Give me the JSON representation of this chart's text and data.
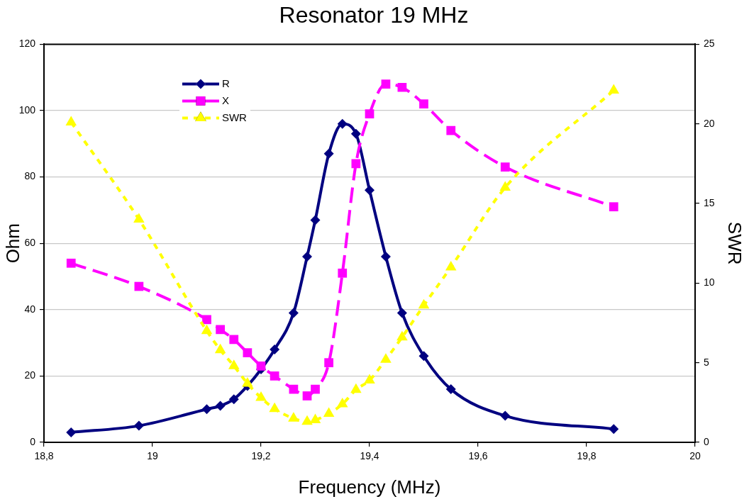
{
  "chart_data": {
    "type": "line",
    "title": "Resonator 19 MHz",
    "xlabel": "Frequency (MHz)",
    "ylabel": "Ohm",
    "y2label": "SWR",
    "x": [
      18.85,
      18.975,
      19.1,
      19.125,
      19.15,
      19.175,
      19.2,
      19.225,
      19.26,
      19.285,
      19.3,
      19.325,
      19.35,
      19.375,
      19.4,
      19.43,
      19.46,
      19.5,
      19.55,
      19.65,
      19.85
    ],
    "series": [
      {
        "name": "R",
        "color": "#000080",
        "marker": "diamond",
        "line_style": "solid",
        "values": [
          3,
          5,
          10,
          11,
          13,
          17,
          22,
          28,
          39,
          56,
          67,
          87,
          96,
          93,
          76,
          56,
          39,
          26,
          16,
          8,
          4
        ]
      },
      {
        "name": "X",
        "color": "#ff00ff",
        "marker": "square",
        "line_style": "dashed",
        "values": [
          54,
          47,
          37,
          34,
          31,
          27,
          23,
          20,
          16,
          14,
          16,
          24,
          51,
          84,
          99,
          108,
          107,
          102,
          94,
          83,
          71
        ]
      },
      {
        "name": "SWR",
        "color": "#ffff00",
        "marker": "triangle",
        "line_style": "dotted",
        "axis": "y2",
        "values": [
          20.1,
          14,
          7,
          5.8,
          4.8,
          3.7,
          2.8,
          2.1,
          1.5,
          1.3,
          1.4,
          1.8,
          2.4,
          3.3,
          3.9,
          5.2,
          6.6,
          8.6,
          11,
          16,
          22.1
        ]
      }
    ],
    "xlim": [
      18.8,
      20
    ],
    "xticks": [
      {
        "value": 18.8,
        "label": "18,8"
      },
      19,
      {
        "value": 19.2,
        "label": "19,2"
      },
      {
        "value": 19.4,
        "label": "19,4"
      },
      {
        "value": 19.6,
        "label": "19,6"
      },
      {
        "value": 19.8,
        "label": "19,8"
      },
      20
    ],
    "ylim": [
      0,
      120
    ],
    "yticks": [
      0,
      20,
      40,
      60,
      80,
      100,
      120
    ],
    "y2lim": [
      0,
      25
    ],
    "y2ticks": [
      0,
      5,
      10,
      15,
      20,
      25
    ],
    "grid": "y",
    "legend": "top left"
  }
}
